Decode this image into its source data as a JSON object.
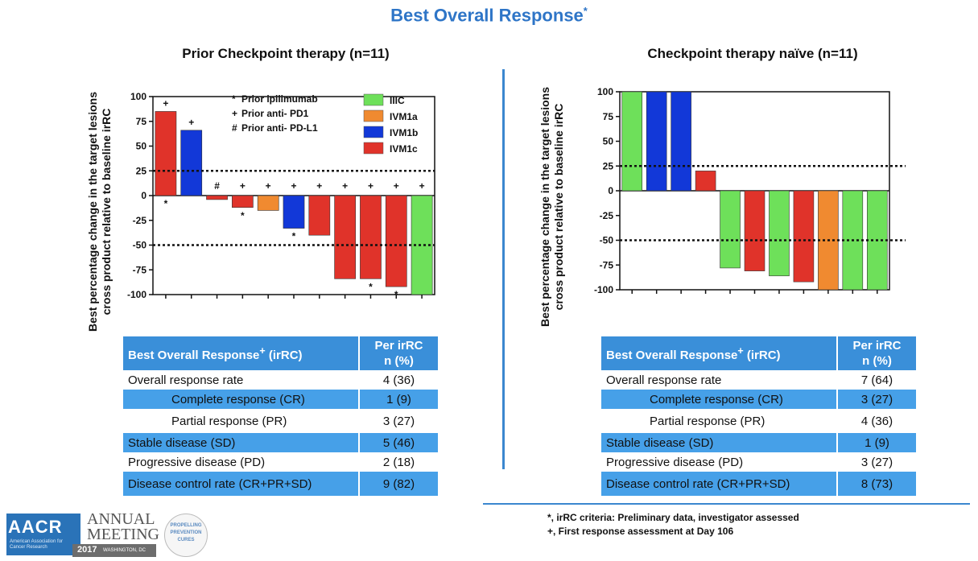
{
  "slide_title": "Best Overall Response",
  "title_marker": "*",
  "chart_data": [
    {
      "type": "bar",
      "title": "Prior Checkpoint therapy (n=11)",
      "ylabel": "Best percentage change in the target lesions cross product relative to baseline irRC",
      "ylim": [
        -100,
        100
      ],
      "yticks": [
        100,
        75,
        50,
        25,
        0,
        -25,
        -50,
        -75,
        -100
      ],
      "reference_lines": [
        25,
        -50
      ],
      "values": [
        85,
        66,
        -4,
        -12,
        -15,
        -33,
        -40,
        -84,
        -84,
        -92,
        -100
      ],
      "groups": [
        "IVM1c",
        "IVM1b",
        "IVM1c",
        "IVM1c",
        "IVM1a",
        "IVM1b",
        "IVM1c",
        "IVM1c",
        "IVM1c",
        "IVM1c",
        "IIIC"
      ],
      "top_markers": [
        "+",
        "+",
        "#",
        "+",
        "+",
        "+",
        "+",
        "+",
        "+",
        "+",
        "+"
      ],
      "bottom_markers": [
        "*",
        "",
        "",
        "*",
        "",
        "*",
        "",
        "",
        "*",
        "*",
        ""
      ],
      "legend_markers": [
        {
          "symbol": "*",
          "label": "Prior ipilimumab"
        },
        {
          "symbol": "+",
          "label": "Prior anti- PD1"
        },
        {
          "symbol": "#",
          "label": "Prior anti- PD-L1"
        }
      ],
      "legend": [
        {
          "name": "IIIC",
          "color": "#6ee05a"
        },
        {
          "name": "IVM1a",
          "color": "#f08a30"
        },
        {
          "name": "IVM1b",
          "color": "#1238d8"
        },
        {
          "name": "IVM1c",
          "color": "#e0332a"
        }
      ]
    },
    {
      "type": "bar",
      "title": "Checkpoint therapy naïve (n=11)",
      "ylabel": "Best percentage change in the target lesions cross product relative to baseline irRC",
      "ylim": [
        -100,
        100
      ],
      "yticks": [
        100,
        75,
        50,
        25,
        0,
        -25,
        -50,
        -75,
        -100
      ],
      "reference_lines": [
        25,
        -50
      ],
      "values": [
        100,
        100,
        100,
        20,
        -78,
        -81,
        -86,
        -92,
        -100,
        -100,
        -100
      ],
      "groups": [
        "IIIC",
        "IVM1b",
        "IVM1b",
        "IVM1c",
        "IIIC",
        "IVM1c",
        "IIIC",
        "IVM1c",
        "IVM1a",
        "IIIC",
        "IIIC"
      ]
    }
  ],
  "tables": [
    {
      "header": {
        "label": "Best Overall Response",
        "label_marker": "+",
        "label_suffix": " (irRC)",
        "value_line1": "Per irRC",
        "value_line2": "n (%)"
      },
      "rows": [
        {
          "label": "Overall response rate",
          "value": "4 (36)"
        },
        {
          "label": "Complete response (CR)",
          "value": "1   (9)"
        },
        {
          "label": "Partial response (PR)",
          "value": "3 (27)"
        },
        {
          "label": "Stable disease (SD)",
          "value": "5 (46)"
        },
        {
          "label": "Progressive disease (PD)",
          "value": "2 (18)"
        },
        {
          "label": "Disease control rate (CR+PR+SD)",
          "value": "9 (82)"
        }
      ]
    },
    {
      "header": {
        "label": "Best Overall Response",
        "label_marker": "+",
        "label_suffix": " (irRC)",
        "value_line1": "Per irRC",
        "value_line2": "n (%)"
      },
      "rows": [
        {
          "label": "Overall response rate",
          "value": "7 (64)"
        },
        {
          "label": "Complete response (CR)",
          "value": "3 (27)"
        },
        {
          "label": "Partial response (PR)",
          "value": "4 (36)"
        },
        {
          "label": "Stable disease (SD)",
          "value": "1  (9)"
        },
        {
          "label": "Progressive disease (PD)",
          "value": "3 (27)"
        },
        {
          "label": "Disease control rate (CR+PR+SD)",
          "value": "8 (73)"
        }
      ]
    }
  ],
  "footnotes": [
    "*, irRC criteria: Preliminary data, investigator assessed",
    "+, First response assessment at Day 106"
  ],
  "logo": {
    "letters": "AACR",
    "org": "American Association for Cancer Research",
    "annual": "ANNUAL",
    "meeting": "MEETING",
    "year": "2017",
    "city": "WASHINGTON, DC",
    "badge_line1": "PROPELLING",
    "badge_line2": "PREVENTION",
    "badge_line3": "CURES"
  }
}
